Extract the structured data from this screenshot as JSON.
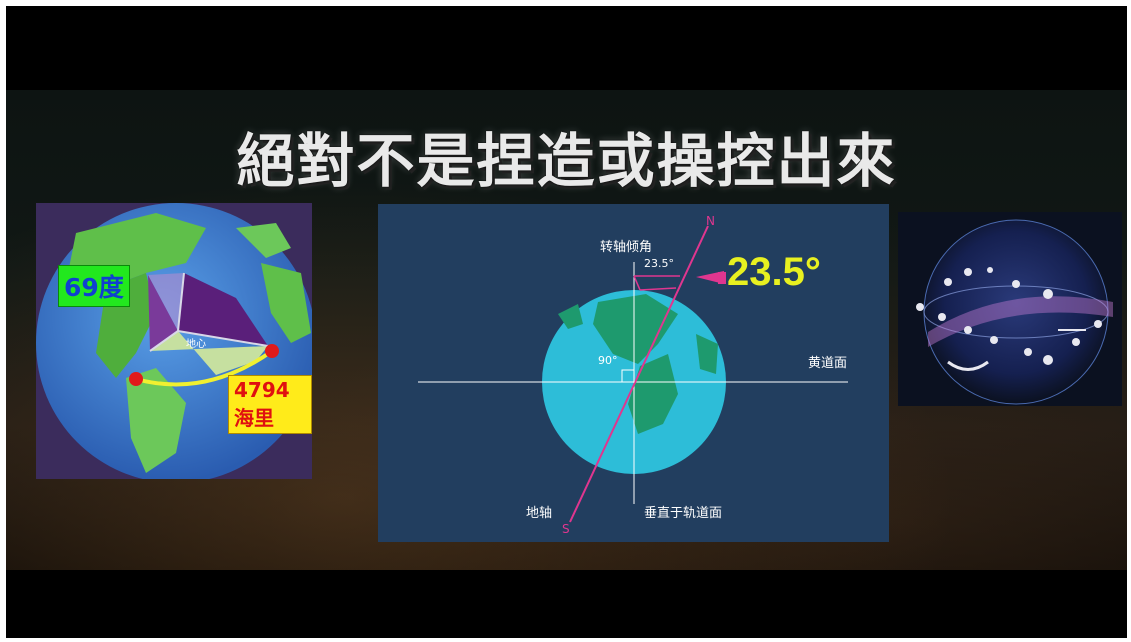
{
  "title": "絕對不是捏造或操控出來",
  "left_panel": {
    "degree_label": "69度",
    "distance_label": "4794海里",
    "center_label": "地心"
  },
  "middle_panel": {
    "axis_tilt_label": "转轴倾角",
    "small_angle": "23.5°",
    "big_angle": "23.5°",
    "north_label": "N",
    "south_label": "S",
    "right_angle_label": "90°",
    "ecliptic_label": "黄道面",
    "axis_label": "地轴",
    "perpendicular_label": "垂直于轨道面"
  },
  "colors": {
    "accent_yellow": "#e8f020",
    "axis_pink": "#e0368f",
    "panel_blue": "#223e5f",
    "earth_ocean": "#2dbdd8",
    "earth_land": "#1e9a6e"
  }
}
